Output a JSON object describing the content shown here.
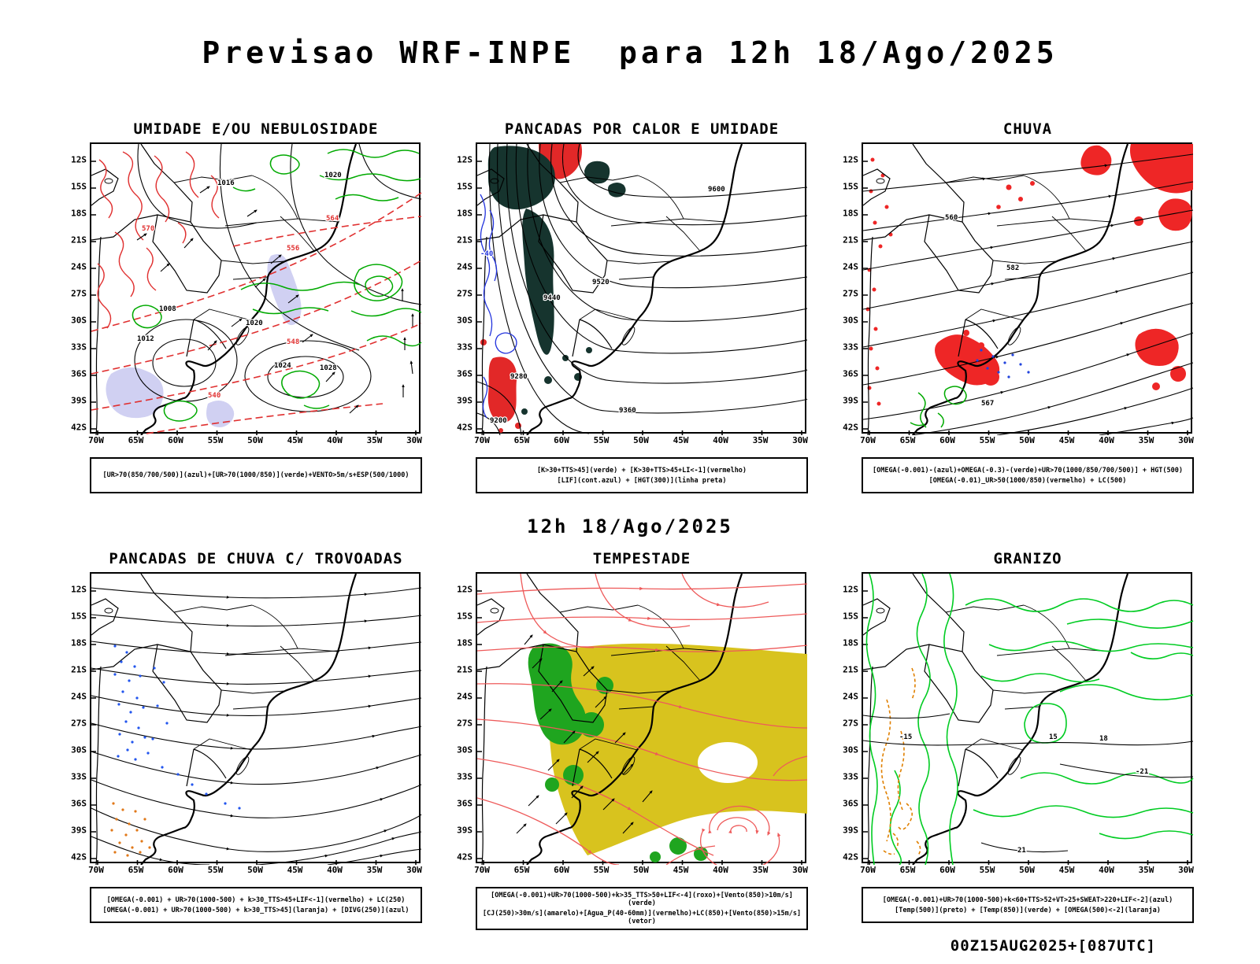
{
  "page": {
    "main_title": "Previsao WRF-INPE  para 12h 18/Ago/2025",
    "mid_title": "12h 18/Ago/2025",
    "footer": "00Z15AUG2025+[087UTC]"
  },
  "axis": {
    "lat": [
      "12S",
      "15S",
      "18S",
      "21S",
      "24S",
      "27S",
      "30S",
      "33S",
      "36S",
      "39S",
      "42S"
    ],
    "lon": [
      "70W",
      "65W",
      "60W",
      "55W",
      "50W",
      "45W",
      "40W",
      "35W",
      "30W"
    ]
  },
  "colors": {
    "humidity_red": "#e03030",
    "humidity_green": "#00aa00",
    "shower_teal": "#16342e",
    "rain_red": "#ee2626",
    "storm_yellow": "#d8c31e",
    "storm_green": "#1fa51f",
    "hail_green": "#00cc22",
    "hail_orange": "#e08000",
    "divergence_blue": "#2255ee",
    "cloud_lavender": "#c8c8f0",
    "streamline_red": "#ee5a5a"
  },
  "panels": [
    {
      "id": "umidade",
      "title": "UMIDADE E/OU NEBULOSIDADE",
      "captions": [
        "[UR>70(850/700/500)](azul)+[UR>70(1000/850)](verde)+VENTO>5m/s+ESP(500/1000)"
      ],
      "labels": {
        "black": [
          "1016",
          "1020",
          "1020",
          "1024",
          "1028",
          "1012",
          "1008"
        ],
        "red": [
          "570",
          "564",
          "556",
          "548",
          "540"
        ]
      }
    },
    {
      "id": "pancadas-calor",
      "title": "PANCADAS POR CALOR E UMIDADE",
      "captions": [
        "[K>30+TTS>45](verde) + [K>30+TTS>45+LI<-1](vermelho)",
        "[LIF](cont.azul) + [HGT(300)](linha preta)"
      ],
      "labels": {
        "black": [
          "9600",
          "9520",
          "9440",
          "9360",
          "9280",
          "9200"
        ],
        "blue": [
          "-40"
        ]
      }
    },
    {
      "id": "chuva",
      "title": "CHUVA",
      "captions": [
        "[OMEGA(-0.001)-(azul)+OMEGA(-0.3)-(verde)+UR>70(1000/850/700/500)] + HGT(500)",
        "[OMEGA(-0.01)_UR>50(1000/850)(vermelho) + LC(500)"
      ],
      "labels": {
        "black": [
          "582",
          "567",
          "560"
        ]
      }
    },
    {
      "id": "trovoadas",
      "title": "PANCADAS DE CHUVA C/ TROVOADAS",
      "captions": [
        "[OMEGA(-0.001) + UR>70(1000-500) + k>30_TTS>45+LIF<-1](vermelho) + LC(250)",
        "[OMEGA(-0.001) + UR>70(1000-500) + k>30_TTS>45](laranja) + [DIVG(250)](azul)"
      ],
      "labels": {}
    },
    {
      "id": "tempestade",
      "title": "TEMPESTADE",
      "captions": [
        "[OMEGA(-0.001)+UR>70(1000-500)+k>35_TTS>50+LIF<-4](roxo)+[Vento(850)>10m/s](verde)",
        "[CJ(250)>30m/s](amarelo)+[Agua_P(40-60mm)](vermelho)+LC(850)+[Vento(850)>15m/s](vetor)"
      ],
      "labels": {}
    },
    {
      "id": "granizo",
      "title": "GRANIZO",
      "captions": [
        "[OMEGA(-0.001)+UR>70(1000-500)+k<60+TTS>52+VT>25+SWEAT>220+LIF<-2](azul)",
        "[Temp(500)](preto) + [Temp(850)](verde) + [OMEGA(500)<-2](laranja)"
      ],
      "labels": {
        "black": [
          "-15",
          "15",
          "18",
          "-21",
          "21"
        ]
      }
    }
  ]
}
